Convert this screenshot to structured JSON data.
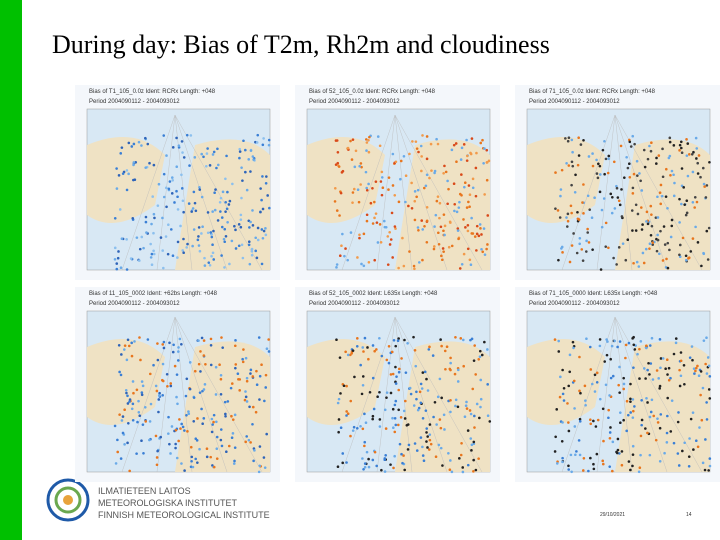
{
  "header": {
    "title": "During day: Bias of T2m, Rh2m and cloudiness"
  },
  "panels": [
    {
      "label": "Bias of T1_105_0.0z Ident: RCRx Length: +048",
      "period": "Period 2004090112 - 2004093012"
    },
    {
      "label": "Bias of 52_105_0.0z Ident: RCRx Length: +048",
      "period": "Period 2004090112 - 2004093012"
    },
    {
      "label": "Bias of 71_105_0.0z Ident: RCRx Length: +048",
      "period": "Period 2004090112 - 2004093012"
    },
    {
      "label": "Bias of 11_105_0002 Ident: +62bs Length: +048",
      "period": "Period 2004090112 - 2004093012"
    },
    {
      "label": "Bias of 52_105_0002 Ident: L635x Length: +048",
      "period": "Period 2004090112 - 2004093012"
    },
    {
      "label": "Bias of 71_105_0000 Ident: L635x Length: +048",
      "period": "Period 2004090112 - 2004093012"
    }
  ],
  "logo": {
    "lines": [
      "ILMATIETEEN LAITOS",
      "METEOROLOGISKA INSTITUTET",
      "FINNISH METEOROLOGICAL INSTITUTE"
    ]
  },
  "footer": {
    "date": "29/10/2021",
    "page": "14"
  }
}
